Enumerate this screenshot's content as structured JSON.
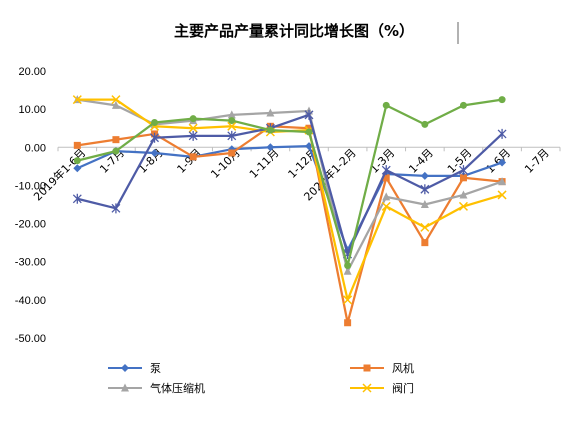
{
  "chart_data": {
    "type": "line",
    "title": "主要产品产量累计同比增长图（%）",
    "ylim": [
      -50,
      20
    ],
    "ytick_labels": [
      "20.00",
      "10.00",
      "0.00",
      "-10.00",
      "-20.00",
      "-30.00",
      "-40.00",
      "-50.00"
    ],
    "categories": [
      "2019年1-6月",
      "1-7月",
      "1-8月",
      "1-9月",
      "1-10月",
      "1-11月",
      "1-12月",
      "2020年1-2月",
      "1-3月",
      "1-4月",
      "1-5月",
      "1-6月",
      "1-7月"
    ],
    "legend_position": "bottom",
    "grid": false,
    "series": [
      {
        "name": "泵",
        "color": "#4472C4",
        "marker": "diamond",
        "values": [
          -5.5,
          -1,
          -1.5,
          -2.5,
          -0.5,
          0,
          0.3,
          -27,
          -7,
          -7.5,
          -7.5,
          -4,
          null
        ]
      },
      {
        "name": "风机",
        "color": "#ED7D31",
        "marker": "square",
        "values": [
          0.5,
          2,
          3.5,
          -2.5,
          -1.5,
          5.5,
          5,
          -46,
          -8,
          -25,
          -8,
          -9,
          null
        ]
      },
      {
        "name": "气体压缩机",
        "color": "#A5A5A5",
        "marker": "triangle",
        "values": [
          12.5,
          11,
          6,
          7,
          8.5,
          9,
          9.5,
          -32.5,
          -13,
          -15,
          -12.5,
          -9,
          null
        ]
      },
      {
        "name": "阀门",
        "color": "#FFC000",
        "marker": "x",
        "values": [
          12.5,
          12.5,
          5.5,
          5,
          5.5,
          4,
          4.5,
          -40,
          -15.5,
          -21,
          -15.5,
          -12.5,
          null
        ]
      },
      {
        "name": "",
        "color": "#4E5BA6",
        "marker": "star",
        "legend": false,
        "values": [
          -13.5,
          -16,
          2.5,
          3,
          3,
          5,
          8.5,
          -28,
          -6,
          -11,
          -6,
          3.5,
          null
        ]
      },
      {
        "name": "",
        "color": "#70AD47",
        "marker": "circle",
        "legend": false,
        "values": [
          -3.5,
          -1,
          6.5,
          7.5,
          7,
          4.5,
          4,
          -31,
          11,
          6,
          11,
          12.5,
          null
        ]
      }
    ]
  }
}
